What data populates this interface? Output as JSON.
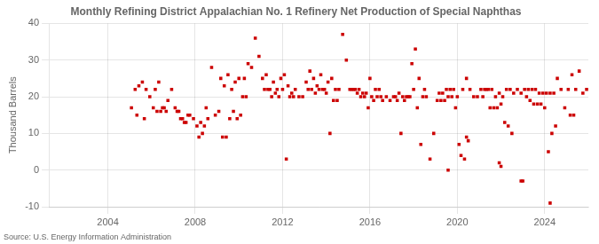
{
  "chart_data": {
    "type": "scatter",
    "title": "Monthly Refining District Appalachian No. 1 Refinery Net Production of Special Naphthas",
    "ylabel": "Thousand Barrels",
    "annotations": [
      "Source: U.S. Energy Information Administration"
    ],
    "color": "#cc0000",
    "marker": "square",
    "grid": true,
    "xlim": [
      2001.3,
      2026.0
    ],
    "xticks": [
      2004,
      2008,
      2012,
      2016,
      2020,
      2024
    ],
    "ylim": [
      -10,
      40
    ],
    "yticks": [
      -10,
      0,
      10,
      20,
      30,
      40
    ],
    "x": [
      2005.08,
      2005.25,
      2005.42,
      2005.58,
      2005.75,
      2005.92,
      2006.08,
      2006.25,
      2006.42,
      2006.58,
      2006.75,
      2006.92,
      2007.08,
      2007.25,
      2007.42,
      2007.58,
      2007.75,
      2007.92,
      2008.08,
      2008.25,
      2008.42,
      2008.58,
      2008.75,
      2008.92,
      2009.08,
      2009.25,
      2009.42,
      2009.58,
      2009.75,
      2009.92,
      2010.08,
      2010.25,
      2010.42,
      2010.58,
      2010.75,
      2010.92,
      2011.08,
      2011.25,
      2011.42,
      2011.58,
      2011.75,
      2011.92,
      2012.08,
      2012.25,
      2012.42,
      2012.58,
      2012.75,
      2012.92,
      2013.08,
      2013.25,
      2013.42,
      2013.58,
      2013.75,
      2013.92,
      2014.08,
      2014.25,
      2014.42,
      2014.58,
      2014.75,
      2014.92,
      2015.08,
      2015.25,
      2015.42,
      2015.58,
      2015.75,
      2015.92,
      2016.08,
      2016.25,
      2016.42,
      2016.58,
      2016.75,
      2016.92,
      2017.08,
      2017.25,
      2017.42,
      2017.58,
      2017.75,
      2017.92,
      2018.08,
      2018.25,
      2018.42,
      2018.58,
      2018.75,
      2018.92,
      2019.08,
      2019.25,
      2019.42,
      2019.58,
      2019.75,
      2019.92,
      2020.08,
      2020.25,
      2020.42,
      2020.58,
      2020.75,
      2020.92,
      2021.08,
      2021.25,
      2021.42,
      2021.58,
      2021.75,
      2021.92,
      2022.08,
      2022.25,
      2022.42,
      2022.58,
      2022.75,
      2022.92,
      2023.08,
      2023.25,
      2023.42,
      2023.58,
      2023.75,
      2023.92,
      2024.08,
      2024.25,
      2024.42,
      2024.58,
      2024.75,
      2024.92,
      2025.08,
      2025.25,
      2025.42,
      2025.58,
      2025.75,
      2025.92,
      2006.17,
      2006.33,
      2006.5,
      2006.67,
      2007.17,
      2007.33,
      2007.5,
      2007.67,
      2009.17,
      2009.33,
      2009.5,
      2009.67,
      2009.83,
      2010.0,
      2011.17,
      2011.33,
      2011.5,
      2011.67,
      2011.83,
      2012.0,
      2013.17,
      2013.33,
      2013.5,
      2013.67,
      2013.83,
      2014.0,
      2015.17,
      2015.33,
      2015.5,
      2015.67,
      2015.83,
      2016.0,
      2017.17,
      2017.33,
      2017.5,
      2017.67,
      2017.83,
      2018.0,
      2019.17,
      2019.33,
      2019.5,
      2019.67,
      2019.83,
      2020.0,
      2021.17,
      2021.33,
      2021.5,
      2021.67,
      2021.83,
      2022.0,
      2023.17,
      2023.33,
      2023.5,
      2023.67,
      2023.83,
      2024.0,
      2025.17,
      2025.33,
      2005.33,
      2005.67,
      2008.17,
      2008.33,
      2008.5,
      2010.17,
      2010.33,
      2012.17,
      2012.33,
      2012.5,
      2014.17,
      2014.33,
      2014.5,
      2016.17,
      2016.33,
      2016.5,
      2018.17,
      2018.33,
      2018.5,
      2020.17,
      2020.33,
      2020.5,
      2022.17,
      2022.33,
      2022.5,
      2024.17,
      2024.33,
      2024.5,
      2019.58,
      2020.42,
      2021.92,
      2022.0,
      2022.92,
      2023.0,
      2024.25
    ],
    "values": [
      17,
      22,
      23,
      24,
      22,
      20,
      17,
      16,
      16,
      17,
      19,
      22,
      17,
      16,
      14,
      13,
      15,
      14,
      12,
      13,
      12,
      14,
      28,
      15,
      16,
      9,
      9,
      14,
      16,
      14,
      15,
      25,
      29,
      28,
      36,
      31,
      25,
      26,
      22,
      24,
      22,
      25,
      26,
      23,
      21,
      22,
      20,
      20,
      24,
      27,
      25,
      23,
      26,
      22,
      24,
      25,
      22,
      22,
      37,
      30,
      22,
      22,
      21,
      20,
      20,
      17,
      20,
      22,
      22,
      19,
      20,
      19,
      20,
      19,
      10,
      19,
      20,
      29,
      33,
      25,
      20,
      20,
      3,
      10,
      19,
      19,
      19,
      20,
      20,
      17,
      7,
      22,
      25,
      22,
      20,
      20,
      22,
      22,
      22,
      22,
      20,
      21,
      20,
      22,
      22,
      21,
      22,
      21,
      22,
      22,
      22,
      22,
      21,
      21,
      21,
      21,
      21,
      25,
      22,
      17,
      22,
      26,
      22,
      27,
      21,
      22,
      22,
      24,
      17,
      16,
      16,
      14,
      13,
      15,
      25,
      23,
      26,
      22,
      24,
      25,
      22,
      22,
      20,
      21,
      20,
      22,
      22,
      22,
      21,
      22,
      22,
      21,
      22,
      22,
      22,
      21,
      21,
      25,
      20,
      21,
      20,
      20,
      20,
      22,
      21,
      21,
      22,
      22,
      22,
      20,
      20,
      22,
      17,
      17,
      17,
      18,
      20,
      19,
      18,
      18,
      18,
      17,
      15,
      15,
      15,
      14,
      9,
      10,
      17,
      20,
      20,
      3,
      20,
      20,
      10,
      19,
      19,
      19,
      20,
      20,
      17,
      7,
      22,
      4,
      3,
      8,
      13,
      12,
      10,
      5,
      10,
      12,
      0,
      9,
      2,
      1,
      -3,
      -3,
      -9
    ]
  }
}
